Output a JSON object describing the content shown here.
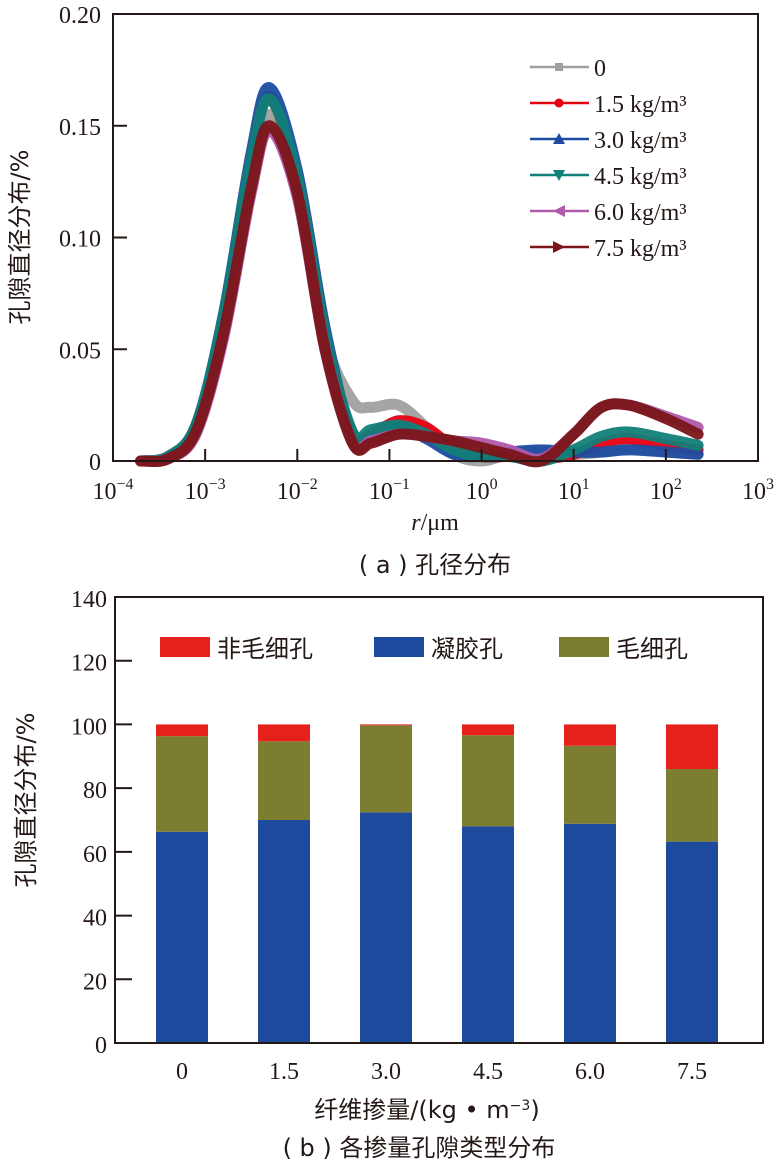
{
  "chart_data": [
    {
      "id": "a",
      "type": "line",
      "caption": "( a ) 孔径分布",
      "xlabel_italic": "r",
      "xlabel_rest": "/μm",
      "ylabel": "孔隙直径分布/%",
      "xscale": "log",
      "xlim_exp": [
        -4,
        3
      ],
      "ylim": [
        0,
        0.2
      ],
      "x_tick_base": "10",
      "x_tick_exponents": [
        "−4",
        "−3",
        "−2",
        "−1",
        "0",
        "1",
        "2",
        "3"
      ],
      "y_ticks": [
        "0",
        "0.05",
        "0.10",
        "0.15",
        "0.20"
      ],
      "legend_position": "top-right",
      "series": [
        {
          "name": "0",
          "color": "#a0a0a0",
          "marker": "square",
          "points": [
            [
              -3.7,
              0.0
            ],
            [
              -3.4,
              0.002
            ],
            [
              -3.1,
              0.015
            ],
            [
              -2.8,
              0.06
            ],
            [
              -2.5,
              0.125
            ],
            [
              -2.3,
              0.155
            ],
            [
              -2.0,
              0.12
            ],
            [
              -1.7,
              0.055
            ],
            [
              -1.4,
              0.027
            ],
            [
              -1.2,
              0.024
            ],
            [
              -0.9,
              0.025
            ],
            [
              -0.6,
              0.015
            ],
            [
              -0.3,
              0.003
            ],
            [
              0.0,
              0.0
            ],
            [
              0.3,
              0.003
            ],
            [
              0.65,
              0.004
            ],
            [
              1.0,
              0.003
            ],
            [
              1.3,
              0.004
            ],
            [
              1.6,
              0.006
            ],
            [
              2.0,
              0.004
            ],
            [
              2.35,
              0.003
            ]
          ]
        },
        {
          "name": "1.5 kg/m³",
          "color": "#e60012",
          "marker": "circle",
          "points": [
            [
              -3.7,
              0.0
            ],
            [
              -3.4,
              0.002
            ],
            [
              -3.1,
              0.016
            ],
            [
              -2.8,
              0.065
            ],
            [
              -2.5,
              0.135
            ],
            [
              -2.3,
              0.163
            ],
            [
              -2.0,
              0.125
            ],
            [
              -1.7,
              0.055
            ],
            [
              -1.4,
              0.012
            ],
            [
              -1.2,
              0.012
            ],
            [
              -0.9,
              0.018
            ],
            [
              -0.6,
              0.015
            ],
            [
              -0.3,
              0.006
            ],
            [
              0.0,
              0.002
            ],
            [
              0.3,
              0.002
            ],
            [
              0.65,
              0.001
            ],
            [
              1.0,
              0.003
            ],
            [
              1.3,
              0.008
            ],
            [
              1.6,
              0.01
            ],
            [
              2.0,
              0.007
            ],
            [
              2.35,
              0.005
            ]
          ]
        },
        {
          "name": "3.0 kg/m³",
          "color": "#1d4ca1",
          "marker": "triangle-up",
          "points": [
            [
              -3.7,
              0.0
            ],
            [
              -3.4,
              0.002
            ],
            [
              -3.1,
              0.016
            ],
            [
              -2.8,
              0.066
            ],
            [
              -2.5,
              0.138
            ],
            [
              -2.3,
              0.167
            ],
            [
              -2.0,
              0.13
            ],
            [
              -1.7,
              0.06
            ],
            [
              -1.4,
              0.01
            ],
            [
              -1.2,
              0.01
            ],
            [
              -0.9,
              0.015
            ],
            [
              -0.6,
              0.01
            ],
            [
              -0.3,
              0.003
            ],
            [
              0.0,
              0.002
            ],
            [
              0.3,
              0.004
            ],
            [
              0.65,
              0.005
            ],
            [
              1.0,
              0.004
            ],
            [
              1.3,
              0.004
            ],
            [
              1.6,
              0.005
            ],
            [
              2.0,
              0.004
            ],
            [
              2.35,
              0.003
            ]
          ]
        },
        {
          "name": "4.5 kg/m³",
          "color": "#118078",
          "marker": "triangle-down",
          "points": [
            [
              -3.7,
              0.0
            ],
            [
              -3.4,
              0.002
            ],
            [
              -3.1,
              0.016
            ],
            [
              -2.8,
              0.065
            ],
            [
              -2.5,
              0.135
            ],
            [
              -2.3,
              0.162
            ],
            [
              -2.0,
              0.127
            ],
            [
              -1.7,
              0.057
            ],
            [
              -1.4,
              0.013
            ],
            [
              -1.2,
              0.014
            ],
            [
              -0.9,
              0.016
            ],
            [
              -0.6,
              0.012
            ],
            [
              -0.3,
              0.005
            ],
            [
              0.0,
              0.002
            ],
            [
              0.3,
              0.002
            ],
            [
              0.65,
              0.0
            ],
            [
              1.0,
              0.005
            ],
            [
              1.3,
              0.011
            ],
            [
              1.6,
              0.013
            ],
            [
              2.0,
              0.01
            ],
            [
              2.35,
              0.007
            ]
          ]
        },
        {
          "name": "6.0 kg/m³",
          "color": "#b05aac",
          "marker": "triangle-left",
          "points": [
            [
              -3.7,
              0.0
            ],
            [
              -3.4,
              0.001
            ],
            [
              -3.1,
              0.012
            ],
            [
              -2.8,
              0.055
            ],
            [
              -2.5,
              0.12
            ],
            [
              -2.3,
              0.148
            ],
            [
              -2.0,
              0.118
            ],
            [
              -1.7,
              0.05
            ],
            [
              -1.4,
              0.008
            ],
            [
              -1.2,
              0.009
            ],
            [
              -0.9,
              0.012
            ],
            [
              -0.6,
              0.011
            ],
            [
              -0.3,
              0.009
            ],
            [
              0.0,
              0.008
            ],
            [
              0.3,
              0.005
            ],
            [
              0.65,
              0.001
            ],
            [
              1.0,
              0.012
            ],
            [
              1.3,
              0.024
            ],
            [
              1.6,
              0.025
            ],
            [
              2.0,
              0.02
            ],
            [
              2.35,
              0.015
            ]
          ]
        },
        {
          "name": "7.5 kg/m³",
          "color": "#7a1518",
          "marker": "triangle-right",
          "points": [
            [
              -3.7,
              0.0
            ],
            [
              -3.4,
              0.001
            ],
            [
              -3.1,
              0.013
            ],
            [
              -2.8,
              0.057
            ],
            [
              -2.5,
              0.122
            ],
            [
              -2.3,
              0.15
            ],
            [
              -2.0,
              0.12
            ],
            [
              -1.7,
              0.05
            ],
            [
              -1.4,
              0.008
            ],
            [
              -1.2,
              0.008
            ],
            [
              -0.9,
              0.012
            ],
            [
              -0.6,
              0.011
            ],
            [
              -0.3,
              0.009
            ],
            [
              0.0,
              0.006
            ],
            [
              0.3,
              0.003
            ],
            [
              0.65,
              0.0
            ],
            [
              1.0,
              0.012
            ],
            [
              1.3,
              0.024
            ],
            [
              1.6,
              0.025
            ],
            [
              2.0,
              0.019
            ],
            [
              2.35,
              0.012
            ]
          ]
        }
      ]
    },
    {
      "id": "b",
      "type": "bar",
      "stacked": true,
      "caption": "( b ) 各掺量孔隙类型分布",
      "xlabel": "纤维掺量/(kg • m",
      "xlabel_sup": "−3",
      "xlabel_end": ")",
      "ylabel": "孔隙直径分布/%",
      "ylim": [
        0,
        140
      ],
      "y_ticks": [
        "0",
        "20",
        "40",
        "60",
        "80",
        "100",
        "120",
        "140"
      ],
      "categories": [
        "0",
        "1.5",
        "3.0",
        "4.5",
        "6.0",
        "7.5"
      ],
      "legend_position": "top",
      "legend_order": [
        "非毛细孔",
        "凝胶孔",
        "毛细孔"
      ],
      "series": [
        {
          "name": "凝胶孔",
          "color": "#1d4a9c",
          "values": [
            66.3,
            70.0,
            72.4,
            68.0,
            68.8,
            63.2
          ]
        },
        {
          "name": "毛细孔",
          "color": "#7b7d31",
          "values": [
            30.0,
            24.7,
            27.3,
            28.6,
            24.5,
            22.8
          ]
        },
        {
          "name": "非毛细孔",
          "color": "#e6201a",
          "values": [
            3.7,
            5.3,
            0.3,
            3.4,
            6.7,
            14.0
          ]
        }
      ]
    }
  ]
}
